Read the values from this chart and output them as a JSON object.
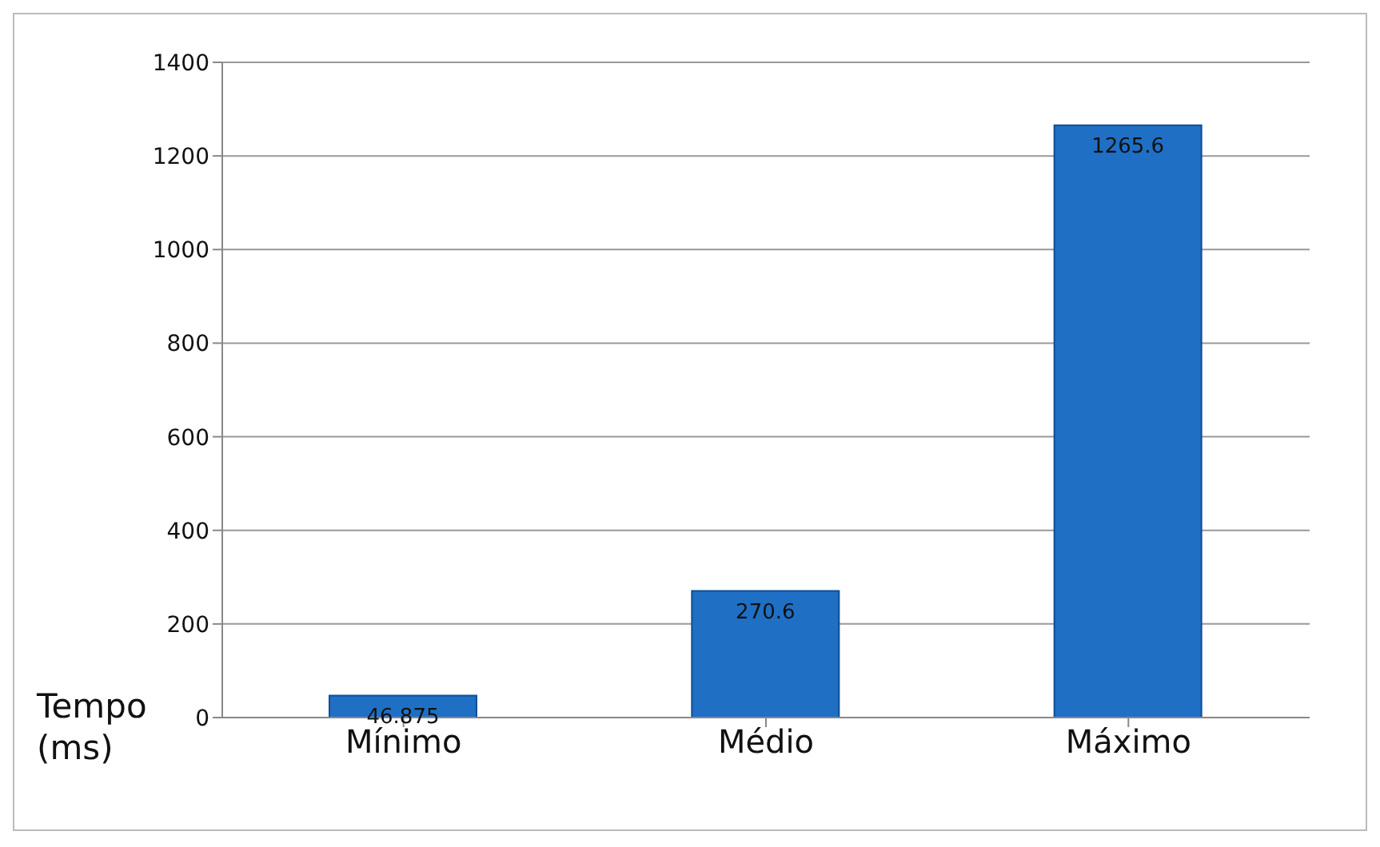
{
  "chart_data": {
    "type": "bar",
    "ylabel": "Tempo (ms)",
    "categories": [
      "Mínimo",
      "Médio",
      "Máximo"
    ],
    "values": [
      46.875,
      270.6,
      1265.6
    ],
    "color": "#1f6fc5",
    "ylim": [
      0,
      1400
    ],
    "yticks": [
      0,
      200,
      400,
      600,
      800,
      1000,
      1200,
      1400
    ],
    "grid": "y",
    "data_labels": true
  }
}
